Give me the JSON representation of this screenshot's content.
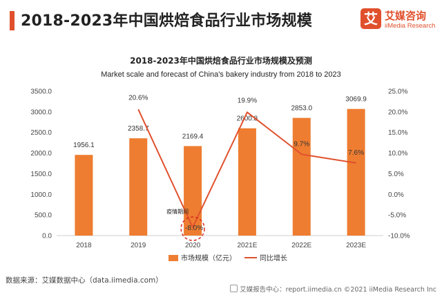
{
  "header": {
    "title": "2018-2023年中国烘焙食品行业市场规模",
    "logo_mark": "艾",
    "logo_cn": "艾媒咨询",
    "logo_en": "iiMedia Research"
  },
  "chart_data": {
    "type": "bar",
    "title": "2018-2023年中国烘焙食品行业市场规模及预测",
    "subtitle": "Market scale and forecast of China's bakery industry from 2018 to 2023",
    "categories": [
      "2018",
      "2019",
      "2020",
      "2021E",
      "2022E",
      "2023E"
    ],
    "series": [
      {
        "name": "市场规模（亿元）",
        "type": "bar",
        "axis": "left",
        "values": [
          1956.1,
          2358.7,
          2169.4,
          2600.8,
          2853.0,
          3069.9
        ],
        "labels": [
          "1956.1",
          "2358.7",
          "2169.4",
          "2600.8",
          "2853.0",
          "3069.9"
        ]
      },
      {
        "name": "同比增长",
        "type": "line",
        "axis": "right",
        "values": [
          null,
          20.6,
          -8.0,
          19.9,
          9.7,
          7.6
        ],
        "labels": [
          "",
          "20.6%",
          "-8.0%",
          "19.9%",
          "9.7%",
          "7.6%"
        ]
      }
    ],
    "y_left": {
      "ylim": [
        0,
        3500
      ],
      "ticks": [
        "0.0",
        "500.0",
        "1000.0",
        "1500.0",
        "2000.0",
        "2500.0",
        "3000.0",
        "3500.0"
      ]
    },
    "y_right": {
      "ylim": [
        -10,
        25
      ],
      "ticks": [
        "-10.0%",
        "-5.0%",
        "0.0%",
        "5.0%",
        "10.0%",
        "15.0%",
        "20.0%",
        "25.0%"
      ]
    },
    "annotation": {
      "text": "疫情期间",
      "category": "2020"
    },
    "legend_position": "bottom",
    "grid": false,
    "colors": {
      "bar": "#ee7d31",
      "line": "#e0502c"
    }
  },
  "footer": {
    "source": "数据来源：艾媒数据中心（data.iimedia.com）",
    "watermark": "艾媒报告中心：report.iimedia.cn   ©2021  iiMedia Research  Inc"
  }
}
